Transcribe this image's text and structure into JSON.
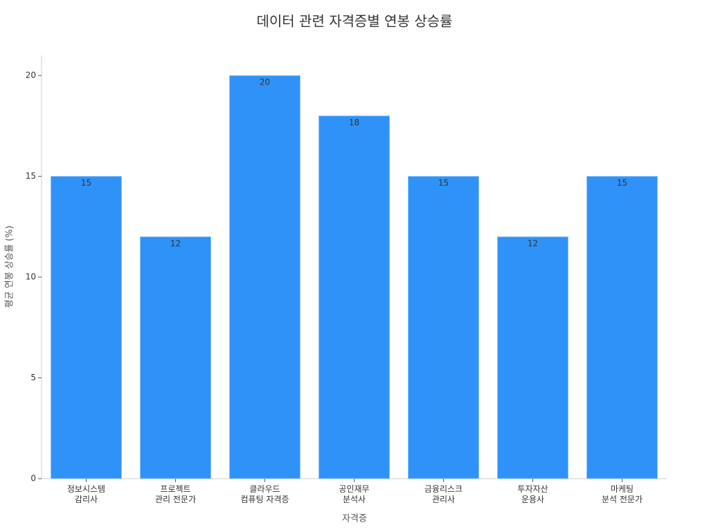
{
  "chart_data": {
    "type": "bar",
    "title": "데이터 관련 자격증별 연봉 상승률",
    "x_label": "자격증",
    "y_label": "평균 연봉 상승률 (%)",
    "categories": [
      "정보시스템\n감리사",
      "프로젝트\n관리 전문가",
      "클라우드\n컴퓨팅 자격증",
      "공인재무\n분석사",
      "금융리스크\n관리사",
      "투자자산\n운용사",
      "마케팅\n분석 전문가"
    ],
    "values": [
      15,
      12,
      20,
      18,
      15,
      12,
      15
    ],
    "color": "#2f92f8",
    "ylim": [
      0,
      21
    ],
    "yticks": [
      0,
      5,
      10,
      15,
      20
    ],
    "grid": false
  }
}
